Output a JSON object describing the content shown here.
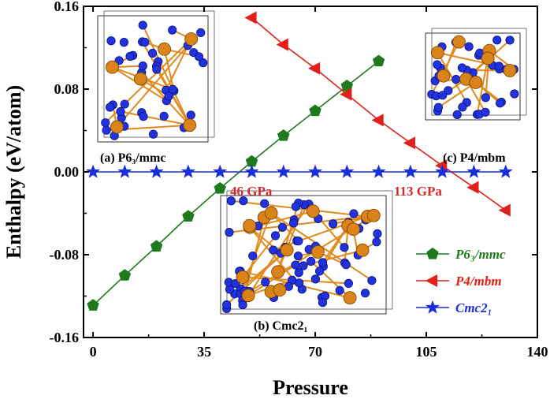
{
  "chart_data": {
    "type": "line",
    "xlabel": "Pressure",
    "ylabel": "Enthalpy (eV/atom)",
    "xlim": [
      -3,
      140
    ],
    "ylim": [
      -0.16,
      0.16
    ],
    "x_ticks": [
      "0",
      "35",
      "70",
      "105",
      "140"
    ],
    "y_ticks": [
      "0.16",
      "0.08",
      "0.00",
      "-0.08",
      "-0.16"
    ],
    "grid": false,
    "legend_position": "bottom-right",
    "series": [
      {
        "name": "P6₃/mmc",
        "color": "#1f7a1f",
        "marker": "pentagon",
        "x": [
          0,
          10,
          20,
          30,
          40,
          50,
          60,
          70,
          80,
          90
        ],
        "y": [
          -0.129,
          -0.1,
          -0.072,
          -0.043,
          -0.016,
          0.01,
          0.035,
          0.059,
          0.083,
          0.107
        ]
      },
      {
        "name": "P4/mbm",
        "color": "#e0201b",
        "marker": "triangle-left",
        "x": [
          50,
          60,
          70,
          80,
          90,
          100,
          110,
          120,
          130
        ],
        "y": [
          0.149,
          0.123,
          0.1,
          0.075,
          0.05,
          0.028,
          0.006,
          -0.015,
          -0.037
        ]
      },
      {
        "name": "Cmc2₁",
        "color": "#1a2fd9",
        "marker": "star",
        "x": [
          0,
          10,
          20,
          30,
          40,
          50,
          60,
          70,
          80,
          90,
          100,
          110,
          120,
          130
        ],
        "y": [
          0,
          0,
          0,
          0,
          0,
          0,
          0,
          0,
          0,
          0,
          0,
          0,
          0,
          0
        ]
      }
    ],
    "annotations": [
      {
        "text": "46 GPa",
        "x": 46,
        "y": 0.0
      },
      {
        "text": "113 GPa",
        "x": 113,
        "y": 0.0
      }
    ],
    "insets": [
      {
        "caption": "(a) P6₃/mmc"
      },
      {
        "caption": "(c) P4/mbm"
      },
      {
        "caption": "(b) Cmc2₁"
      }
    ]
  }
}
